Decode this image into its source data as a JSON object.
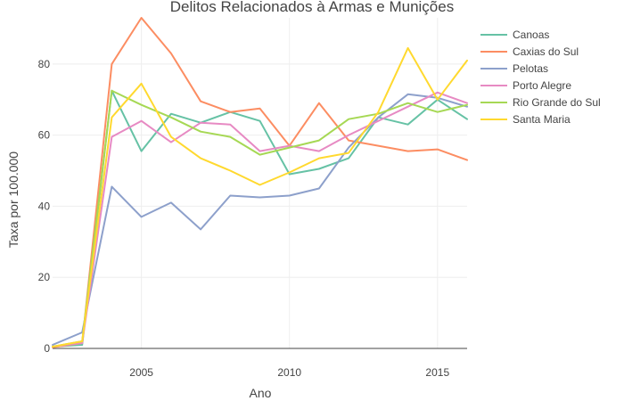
{
  "chart_data": {
    "type": "line",
    "title": "Delitos Relacionados à Armas e Munições",
    "xlabel": "Ano",
    "ylabel": "Taxa por 100.000",
    "xlim": [
      2002,
      2016
    ],
    "ylim": [
      0,
      93
    ],
    "xticks": [
      2005,
      2010,
      2015
    ],
    "yticks": [
      0,
      20,
      40,
      60,
      80
    ],
    "grid": true,
    "legend_position": "top-right",
    "x": [
      2002,
      2003,
      2004,
      2005,
      2006,
      2007,
      2008,
      2009,
      2010,
      2011,
      2012,
      2013,
      2014,
      2015,
      2016
    ],
    "series": [
      {
        "name": "Canoas",
        "color": "#66c2a5",
        "values": [
          0.5,
          1.0,
          72.5,
          55.5,
          66.0,
          63.5,
          66.5,
          64.0,
          49.0,
          50.5,
          53.5,
          65.0,
          63.0,
          70.0,
          64.5
        ]
      },
      {
        "name": "Caxias do Sul",
        "color": "#fc8d62",
        "values": [
          0.3,
          1.5,
          80.0,
          93.0,
          83.0,
          69.5,
          66.5,
          67.5,
          57.0,
          69.0,
          58.5,
          57.0,
          55.5,
          56.0,
          53.0
        ]
      },
      {
        "name": "Pelotas",
        "color": "#8da0cb",
        "values": [
          1.0,
          4.5,
          45.5,
          37.0,
          41.0,
          33.5,
          43.0,
          42.5,
          43.0,
          45.0,
          56.5,
          65.0,
          71.5,
          70.5,
          68.0
        ]
      },
      {
        "name": "Porto Alegre",
        "color": "#e78ac3",
        "values": [
          0.5,
          1.5,
          59.5,
          64.0,
          58.0,
          63.5,
          63.0,
          55.5,
          57.0,
          55.5,
          60.0,
          64.0,
          68.0,
          72.0,
          69.0
        ]
      },
      {
        "name": "Rio Grande do Sul",
        "color": "#a6d854",
        "values": [
          0.5,
          2.0,
          72.5,
          68.5,
          65.0,
          61.0,
          59.5,
          54.5,
          56.5,
          58.5,
          64.5,
          66.0,
          69.0,
          66.5,
          68.5
        ]
      },
      {
        "name": "Santa Maria",
        "color": "#ffd92f",
        "values": [
          0.5,
          2.0,
          65.0,
          74.5,
          59.5,
          53.5,
          50.0,
          46.0,
          49.5,
          53.5,
          55.0,
          66.5,
          84.5,
          70.0,
          81.0
        ]
      }
    ]
  }
}
